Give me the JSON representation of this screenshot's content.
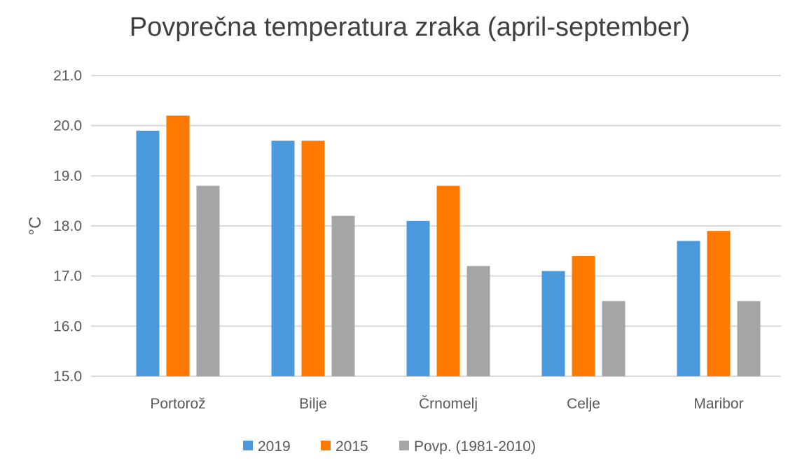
{
  "chart_data": {
    "type": "bar",
    "title": "Povprečna temperatura zraka (april-september)",
    "xlabel": "",
    "ylabel": "°C",
    "ylim": [
      15.0,
      21.0
    ],
    "yticks": [
      "15.0",
      "16.0",
      "17.0",
      "18.0",
      "19.0",
      "20.0",
      "21.0"
    ],
    "grid": true,
    "legend_position": "bottom",
    "categories": [
      "Portorož",
      "Bilje",
      "Črnomelj",
      "Celje",
      "Maribor"
    ],
    "series": [
      {
        "name": "2019",
        "color": "#4A9ADB",
        "values": [
          19.9,
          19.7,
          18.1,
          17.1,
          17.7
        ]
      },
      {
        "name": "2015",
        "color": "#FF7800",
        "values": [
          20.2,
          19.7,
          18.8,
          17.4,
          17.9
        ]
      },
      {
        "name": "Povp. (1981-2010)",
        "color": "#A5A5A5",
        "values": [
          18.8,
          18.2,
          17.2,
          16.5,
          16.5
        ]
      }
    ]
  }
}
